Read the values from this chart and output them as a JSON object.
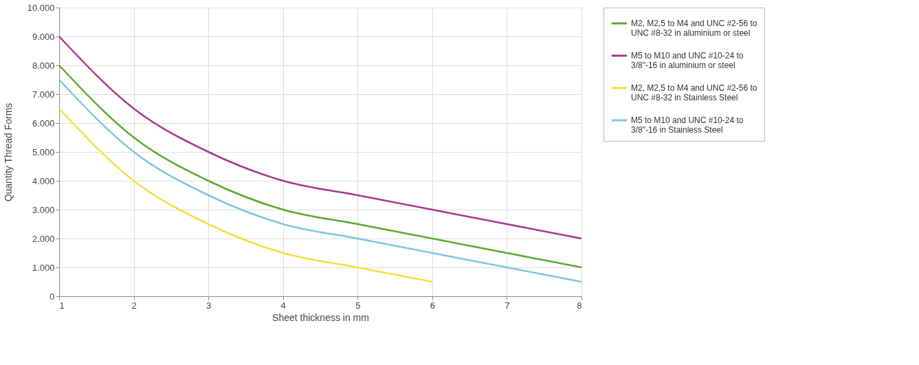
{
  "chart_data": {
    "type": "line",
    "xlabel": "Sheet thickness in mm",
    "ylabel": "Quantity Thread Forms",
    "x": [
      1,
      2,
      3,
      4,
      5,
      6,
      7,
      8
    ],
    "series": [
      {
        "name": "M2, M2,5 to M4 and UNC #2-56 to UNC #8-32 in aluminium or steel",
        "color": "#5aab2c",
        "values": [
          8000,
          5500,
          4000,
          3000,
          2500,
          2000,
          1500,
          1000
        ]
      },
      {
        "name": "M5 to M10 and UNC #10-24 to 3/8\"-16 in aluminium or steel",
        "color": "#a8388f",
        "values": [
          9000,
          6500,
          5000,
          4000,
          3500,
          3000,
          2500,
          2000
        ]
      },
      {
        "name": "M2, M2,5 to M4 and UNC #2-56 to UNC #8-32  in Stainless Steel",
        "color": "#f2e13a",
        "values": [
          6500,
          4000,
          2500,
          1500,
          1000,
          500,
          null,
          null
        ]
      },
      {
        "name": "M5 to M10 and UNC #10-24 to 3/8\"-16 in Stainless Steel",
        "color": "#7fc6dc",
        "values": [
          7500,
          5000,
          3500,
          2500,
          2000,
          1500,
          1000,
          500
        ]
      }
    ],
    "xlim": [
      1,
      8
    ],
    "xticks": [
      1,
      2,
      3,
      4,
      5,
      6,
      7,
      8
    ],
    "ylim": [
      0,
      10000
    ],
    "yticks": [
      {
        "value": 0,
        "label": "0"
      },
      {
        "value": 1000,
        "label": "1.000"
      },
      {
        "value": 2000,
        "label": "2.000"
      },
      {
        "value": 3000,
        "label": "3.000"
      },
      {
        "value": 4000,
        "label": "4.000"
      },
      {
        "value": 5000,
        "label": "5.000"
      },
      {
        "value": 6000,
        "label": "6.000"
      },
      {
        "value": 7000,
        "label": "7.000"
      },
      {
        "value": 8000,
        "label": "8.000"
      },
      {
        "value": 9000,
        "label": "9.000"
      },
      {
        "value": 10000,
        "label": "10.000"
      }
    ],
    "grid": true,
    "legend": "right",
    "marker": "none",
    "line_style": "solid"
  }
}
